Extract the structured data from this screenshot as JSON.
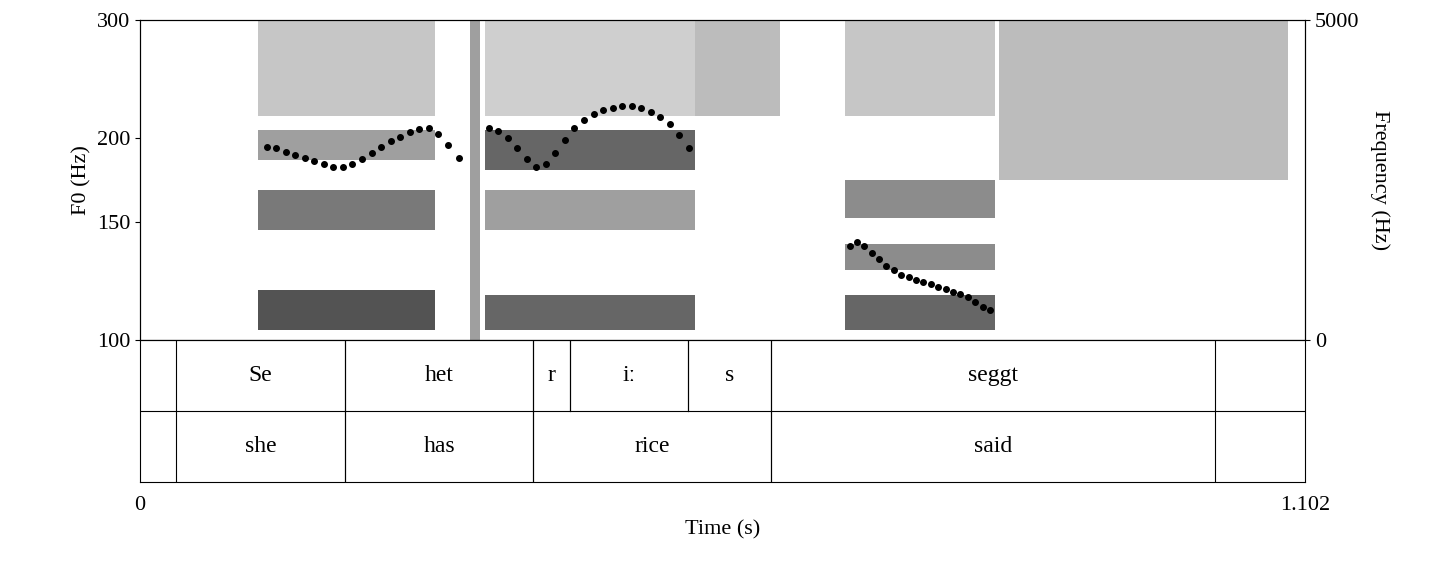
{
  "chart_data": {
    "type": "spectrogram",
    "xlabel": "Time (s)",
    "ylabel": "F0 (Hz)",
    "y2label": "Frequency (Hz)",
    "xlim": [
      0,
      1.102
    ],
    "xticks": [
      0,
      1.102
    ],
    "ylim": [
      100,
      300
    ],
    "yticks": [
      100,
      150,
      200,
      300
    ],
    "log": "y",
    "y2lim": [
      0,
      5000
    ],
    "y2ticks": [
      0,
      5000
    ],
    "color": "#000000",
    "marker": "circle",
    "f0": [
      {
        "time": [
          0.12,
          0.129,
          0.138,
          0.147,
          0.156,
          0.165,
          0.174,
          0.183,
          0.192,
          0.201,
          0.21,
          0.219,
          0.228,
          0.237,
          0.246,
          0.255,
          0.264,
          0.273,
          0.282,
          0.291,
          0.302
        ],
        "values": [
          194,
          193,
          191,
          189,
          187,
          185,
          183,
          181,
          181,
          183,
          186,
          190,
          194,
          198,
          201,
          204,
          206,
          207,
          203,
          195,
          187
        ]
      },
      {
        "time": [
          0.33,
          0.339,
          0.348,
          0.357,
          0.366,
          0.375,
          0.384,
          0.393,
          0.402,
          0.411,
          0.42,
          0.429,
          0.438,
          0.447,
          0.456,
          0.465,
          0.474,
          0.483,
          0.492,
          0.501,
          0.51,
          0.519
        ],
        "values": [
          207,
          205,
          200,
          193,
          186,
          181,
          183,
          190,
          199,
          207,
          213,
          217,
          220,
          222,
          223,
          223,
          222,
          219,
          215,
          210,
          202,
          193
        ]
      },
      {
        "time": [
          0.672,
          0.678,
          0.685,
          0.692,
          0.699,
          0.706,
          0.713,
          0.72,
          0.727,
          0.734,
          0.741,
          0.748,
          0.755,
          0.762,
          0.769,
          0.776,
          0.783,
          0.79,
          0.797,
          0.804
        ],
        "values": [
          138,
          140,
          138,
          135,
          132,
          129,
          127,
          125,
          124,
          123,
          122,
          121,
          120,
          119,
          118,
          117,
          116,
          114,
          112,
          111
        ]
      }
    ],
    "spectrogram": [
      {
        "start": 0.112,
        "end": 0.279,
        "bands": [
          [
            150,
            780,
            0.9
          ],
          [
            1720,
            2340,
            0.7
          ],
          [
            2810,
            3280,
            0.5
          ],
          [
            3500,
            5000,
            0.3
          ]
        ]
      },
      {
        "start": 0.312,
        "end": 0.322,
        "bands": [
          [
            0,
            5000,
            0.5
          ]
        ]
      },
      {
        "start": 0.326,
        "end": 0.525,
        "bands": [
          [
            150,
            700,
            0.8
          ],
          [
            1720,
            2340,
            0.5
          ],
          [
            2650,
            3280,
            0.8
          ],
          [
            3500,
            5000,
            0.25
          ]
        ]
      },
      {
        "start": 0.525,
        "end": 0.605,
        "bands": [
          [
            3500,
            5000,
            0.35
          ]
        ]
      },
      {
        "start": 0.667,
        "end": 0.809,
        "bands": [
          [
            150,
            700,
            0.8
          ],
          [
            1100,
            1500,
            0.6
          ],
          [
            1900,
            2500,
            0.6
          ],
          [
            3500,
            5000,
            0.3
          ]
        ]
      },
      {
        "start": 0.813,
        "end": 1.086,
        "bands": [
          [
            2500,
            5000,
            0.35
          ]
        ]
      }
    ],
    "tiers": [
      [
        {
          "start": 0.034,
          "end": 0.194,
          "text": "Se"
        },
        {
          "start": 0.194,
          "end": 0.372,
          "text": "het"
        },
        {
          "start": 0.372,
          "end": 0.407,
          "text": "r"
        },
        {
          "start": 0.407,
          "end": 0.518,
          "text": "iː"
        },
        {
          "start": 0.518,
          "end": 0.597,
          "text": "s"
        },
        {
          "start": 0.597,
          "end": 1.017,
          "text": "seggt"
        }
      ],
      [
        {
          "start": 0.034,
          "end": 0.194,
          "text": "she"
        },
        {
          "start": 0.194,
          "end": 0.372,
          "text": "has"
        },
        {
          "start": 0.372,
          "end": 0.597,
          "text": "rice"
        },
        {
          "start": 0.597,
          "end": 1.017,
          "text": "said"
        }
      ]
    ]
  }
}
